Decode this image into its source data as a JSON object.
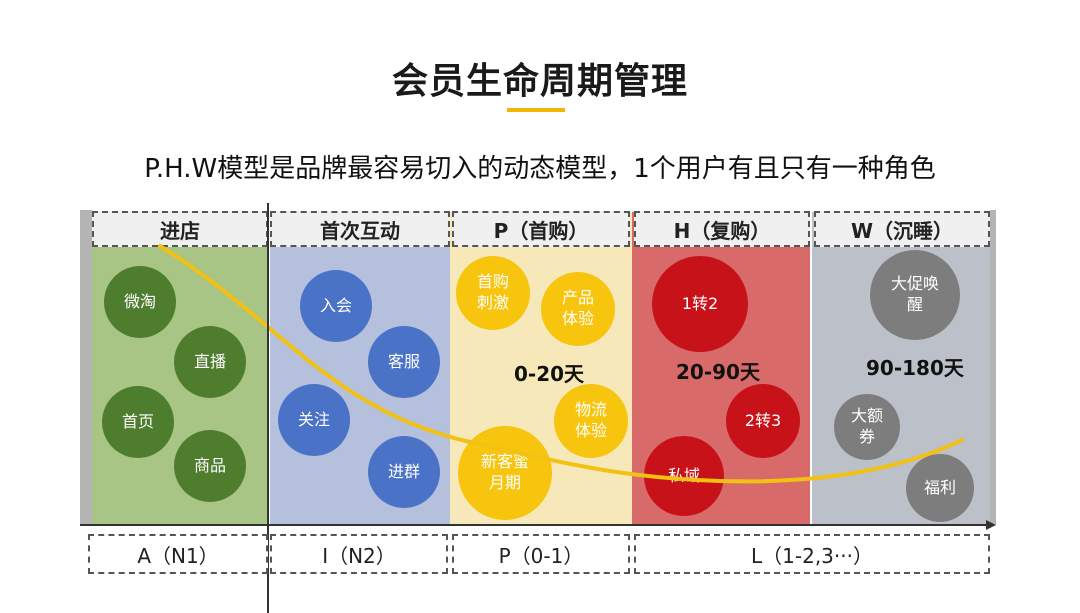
{
  "title": "会员生命周期管理",
  "subtitle": "P.H.W模型是品牌最容易切入的动态模型，1个用户有且只有一种角色",
  "colors": {
    "stage1": "#a8c586",
    "stage2": "#b4c0dc",
    "stage3": "#f6e8b8",
    "stage4": "#d96a6a",
    "stage5": "#bcc0c8",
    "green": "#4f7d2e",
    "blue": "#4a72c6",
    "yellow": "#f7c40e",
    "red": "#c8121a",
    "gray": "#7d7d7d",
    "curve": "#f2c112",
    "accent": "#f2b705"
  },
  "stages": [
    {
      "header": "进店"
    },
    {
      "header": "首次互动"
    },
    {
      "header": "P（首购）",
      "range": "0-20天"
    },
    {
      "header": "H（复购）",
      "range": "20-90天"
    },
    {
      "header": "W（沉睡）",
      "range": "90-180天"
    }
  ],
  "bubbles": {
    "weitao": "微淘",
    "zhibo": "直播",
    "shouye": "首页",
    "shangpin": "商品",
    "ruhui": "入会",
    "kefu": "客服",
    "guanzhu": "关注",
    "jinqun": "进群",
    "shougou": "首购\n刺激",
    "chanpin": "产品\n体验",
    "wuliu": "物流\n体验",
    "xinke": "新客蜜\n月期",
    "zhuan12": "1转2",
    "zhuan23": "2转3",
    "siyu": "私域",
    "dacu": "大促唤\n醒",
    "dae": "大额\n券",
    "fuli": "福利"
  },
  "bottom": [
    {
      "label": "A（N1）"
    },
    {
      "label": "I（N2）"
    },
    {
      "label": "P（0-1）"
    },
    {
      "label": "L（1-2,3···）"
    }
  ]
}
